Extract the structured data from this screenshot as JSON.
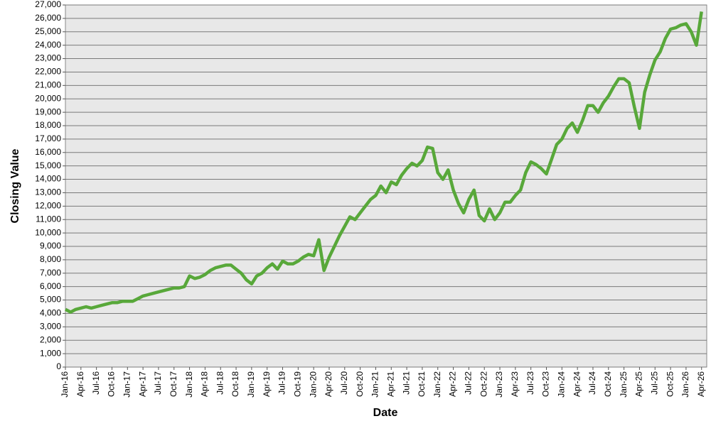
{
  "chart_data": {
    "type": "line",
    "x_label": "Date",
    "y_label": "Closing Value",
    "x": [
      "2016-01",
      "2016-02",
      "2016-03",
      "2016-04",
      "2016-05",
      "2016-06",
      "2016-07",
      "2016-08",
      "2016-09",
      "2016-10",
      "2016-11",
      "2016-12",
      "2017-01",
      "2017-02",
      "2017-03",
      "2017-04",
      "2017-05",
      "2017-06",
      "2017-07",
      "2017-08",
      "2017-09",
      "2017-10",
      "2017-11",
      "2017-12",
      "2018-01",
      "2018-02",
      "2018-03",
      "2018-04",
      "2018-05",
      "2018-06",
      "2018-07",
      "2018-08",
      "2018-09",
      "2018-10",
      "2018-11",
      "2018-12",
      "2019-01",
      "2019-02",
      "2019-03",
      "2019-04",
      "2019-05",
      "2019-06",
      "2019-07",
      "2019-08",
      "2019-09",
      "2019-10",
      "2019-11",
      "2019-12",
      "2020-01",
      "2020-02",
      "2020-03",
      "2020-04",
      "2020-05",
      "2020-06",
      "2020-07",
      "2020-08",
      "2020-09",
      "2020-10",
      "2020-11",
      "2020-12",
      "2021-01",
      "2021-02",
      "2021-03",
      "2021-04",
      "2021-05",
      "2021-06",
      "2021-07",
      "2021-08",
      "2021-09",
      "2021-10",
      "2021-11",
      "2021-12",
      "2022-01",
      "2022-02",
      "2022-03",
      "2022-04",
      "2022-05",
      "2022-06",
      "2022-07",
      "2022-08",
      "2022-09",
      "2022-10",
      "2022-11",
      "2022-12",
      "2023-01",
      "2023-02",
      "2023-03",
      "2023-04",
      "2023-05",
      "2023-06",
      "2023-07",
      "2023-08",
      "2023-09",
      "2023-10",
      "2023-11",
      "2023-12",
      "2024-01",
      "2024-02",
      "2024-03",
      "2024-04",
      "2024-05",
      "2024-06",
      "2024-07",
      "2024-08",
      "2024-09",
      "2024-10",
      "2024-11",
      "2024-12",
      "2025-01",
      "2025-02",
      "2025-03",
      "2025-04",
      "2025-05",
      "2025-06",
      "2025-07",
      "2025-08",
      "2025-09",
      "2025-10",
      "2025-11",
      "2025-12",
      "2026-01",
      "2026-02",
      "2026-03",
      "2026-04"
    ],
    "series": [
      {
        "color": "#58a83a",
        "values": [
          4300,
          4100,
          4300,
          4400,
          4500,
          4400,
          4500,
          4600,
          4700,
          4800,
          4800,
          4900,
          4900,
          4900,
          5100,
          5300,
          5400,
          5500,
          5600,
          5700,
          5800,
          5900,
          5900,
          6000,
          6800,
          6600,
          6700,
          6900,
          7200,
          7400,
          7500,
          7600,
          7600,
          7300,
          7000,
          6500,
          6200,
          6800,
          7000,
          7400,
          7700,
          7300,
          7900,
          7700,
          7700,
          7900,
          8200,
          8400,
          8300,
          9500,
          7200,
          8200,
          9000,
          9800,
          10500,
          11200,
          11000,
          11500,
          12000,
          12500,
          12800,
          13500,
          13000,
          13800,
          13600,
          14300,
          14800,
          15200,
          15000,
          15400,
          16400,
          16300,
          14500,
          14000,
          14700,
          13200,
          12200,
          11500,
          12500,
          13200,
          11300,
          10900,
          11800,
          11000,
          11500,
          12300,
          12300,
          12800,
          13200,
          14500,
          15300,
          15100,
          14800,
          14400,
          15500,
          16600,
          17000,
          17800,
          18200,
          17500,
          18400,
          19500,
          19500,
          19000,
          19700,
          20200,
          20900,
          21500,
          21500,
          21200,
          19400,
          17800,
          20500,
          21800,
          22900,
          23500,
          24500,
          25200,
          25300,
          25500,
          25600,
          25000,
          24000,
          26500
        ]
      }
    ],
    "xlim": [
      "2016-01",
      "2026-05"
    ],
    "xticks": [
      {
        "value": "2016-01",
        "label": "Jan-16"
      },
      {
        "value": "2016-04",
        "label": "Apr-16"
      },
      {
        "value": "2016-07",
        "label": "Jul-16"
      },
      {
        "value": "2016-10",
        "label": "Oct-16"
      },
      {
        "value": "2017-01",
        "label": "Jan-17"
      },
      {
        "value": "2017-04",
        "label": "Apr-17"
      },
      {
        "value": "2017-07",
        "label": "Jul-17"
      },
      {
        "value": "2017-10",
        "label": "Oct-17"
      },
      {
        "value": "2018-01",
        "label": "Jan-18"
      },
      {
        "value": "2018-04",
        "label": "Apr-18"
      },
      {
        "value": "2018-07",
        "label": "Jul-18"
      },
      {
        "value": "2018-10",
        "label": "Oct-18"
      },
      {
        "value": "2019-01",
        "label": "Jan-19"
      },
      {
        "value": "2019-04",
        "label": "Apr-19"
      },
      {
        "value": "2019-07",
        "label": "Jul-19"
      },
      {
        "value": "2019-10",
        "label": "Oct-19"
      },
      {
        "value": "2020-01",
        "label": "Jan-20"
      },
      {
        "value": "2020-04",
        "label": "Apr-20"
      },
      {
        "value": "2020-07",
        "label": "Jul-20"
      },
      {
        "value": "2020-10",
        "label": "Oct-20"
      },
      {
        "value": "2021-01",
        "label": "Jan-21"
      },
      {
        "value": "2021-04",
        "label": "Apr-21"
      },
      {
        "value": "2021-07",
        "label": "Jul-21"
      },
      {
        "value": "2021-10",
        "label": "Oct-21"
      },
      {
        "value": "2022-01",
        "label": "Jan-22"
      },
      {
        "value": "2022-04",
        "label": "Apr-22"
      },
      {
        "value": "2022-07",
        "label": "Jul-22"
      },
      {
        "value": "2022-10",
        "label": "Oct-22"
      },
      {
        "value": "2023-01",
        "label": "Jan-23"
      },
      {
        "value": "2023-04",
        "label": "Apr-23"
      },
      {
        "value": "2023-07",
        "label": "Jul-23"
      },
      {
        "value": "2023-10",
        "label": "Oct-23"
      },
      {
        "value": "2024-01",
        "label": "Jan-24"
      },
      {
        "value": "2024-04",
        "label": "Apr-24"
      },
      {
        "value": "2024-07",
        "label": "Jul-24"
      },
      {
        "value": "2024-10",
        "label": "Oct-24"
      },
      {
        "value": "2025-01",
        "label": "Jan-25"
      },
      {
        "value": "2025-04",
        "label": "Apr-25"
      },
      {
        "value": "2025-07",
        "label": "Jul-25"
      },
      {
        "value": "2025-10",
        "label": "Oct-25"
      },
      {
        "value": "2026-01",
        "label": "Jan-26"
      },
      {
        "value": "2026-04",
        "label": "Apr-26"
      }
    ],
    "ylim": [
      0,
      27000
    ],
    "yticks": [
      0,
      {
        "value": 1000,
        "label": "1,000"
      },
      {
        "value": 2000,
        "label": "2,000"
      },
      {
        "value": 3000,
        "label": "3,000"
      },
      {
        "value": 4000,
        "label": "4,000"
      },
      {
        "value": 5000,
        "label": "5,000"
      },
      {
        "value": 6000,
        "label": "6,000"
      },
      {
        "value": 7000,
        "label": "7,000"
      },
      {
        "value": 8000,
        "label": "8,000"
      },
      {
        "value": 9000,
        "label": "9,000"
      },
      {
        "value": 10000,
        "label": "10,000"
      },
      {
        "value": 11000,
        "label": "11,000"
      },
      {
        "value": 12000,
        "label": "12,000"
      },
      {
        "value": 13000,
        "label": "13,000"
      },
      {
        "value": 14000,
        "label": "14,000"
      },
      {
        "value": 15000,
        "label": "15,000"
      },
      {
        "value": 16000,
        "label": "16,000"
      },
      {
        "value": 17000,
        "label": "17,000"
      },
      {
        "value": 18000,
        "label": "18,000"
      },
      {
        "value": 19000,
        "label": "19,000"
      },
      {
        "value": 20000,
        "label": "20,000"
      },
      {
        "value": 21000,
        "label": "21,000"
      },
      {
        "value": 22000,
        "label": "22,000"
      },
      {
        "value": 23000,
        "label": "23,000"
      },
      {
        "value": 24000,
        "label": "24,000"
      },
      {
        "value": 25000,
        "label": "25,000"
      },
      {
        "value": 26000,
        "label": "26,000"
      },
      {
        "value": 27000,
        "label": "27,000"
      }
    ],
    "grid": true
  }
}
